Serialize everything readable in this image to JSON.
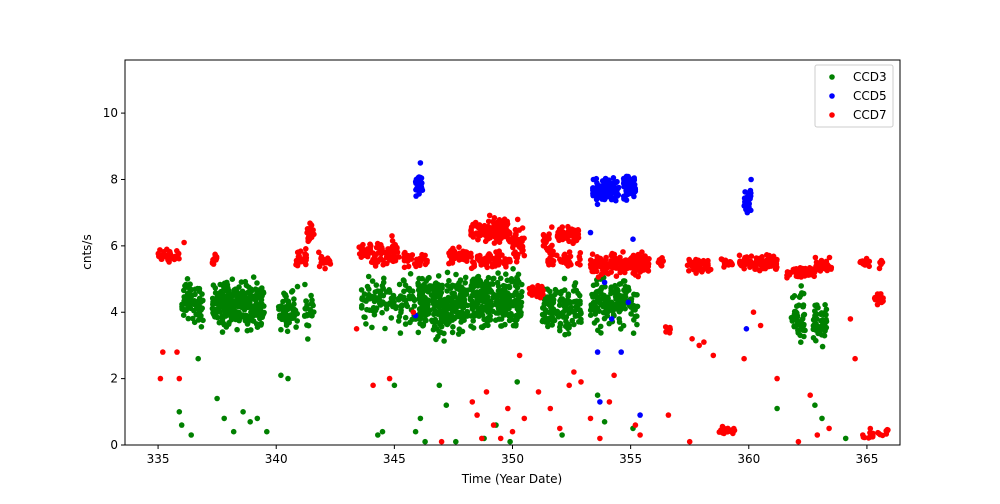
{
  "chart_data": {
    "type": "scatter",
    "title": "",
    "xlabel": "Time (Year Date)",
    "ylabel": "cnts/s",
    "xlim": [
      333.6,
      366.4
    ],
    "ylim": [
      0,
      11.6
    ],
    "xticks": [
      335,
      340,
      345,
      350,
      355,
      360,
      365
    ],
    "yticks": [
      0,
      2,
      4,
      6,
      8,
      10
    ],
    "grid": false,
    "legend_position": "top-right",
    "series": [
      {
        "name": "CCD3",
        "color": "#008000",
        "clusters": [
          {
            "x": [
              336.0,
              336.9
            ],
            "y": [
              3.3,
              5.3
            ],
            "n": 70
          },
          {
            "x": [
              337.3,
              339.5
            ],
            "y": [
              3.2,
              5.2
            ],
            "n": 300
          },
          {
            "x": [
              340.1,
              340.9
            ],
            "y": [
              3.1,
              4.9
            ],
            "n": 60
          },
          {
            "x": [
              341.2,
              341.6
            ],
            "y": [
              3.1,
              5.4
            ],
            "n": 25
          },
          {
            "x": [
              343.6,
              345.9
            ],
            "y": [
              3.2,
              5.4
            ],
            "n": 110
          },
          {
            "x": [
              346.0,
              348.1
            ],
            "y": [
              3.0,
              5.5
            ],
            "n": 280
          },
          {
            "x": [
              348.2,
              350.4
            ],
            "y": [
              3.2,
              5.5
            ],
            "n": 260
          },
          {
            "x": [
              351.2,
              352.9
            ],
            "y": [
              3.0,
              5.2
            ],
            "n": 130
          },
          {
            "x": [
              353.3,
              355.3
            ],
            "y": [
              3.2,
              5.4
            ],
            "n": 140
          },
          {
            "x": [
              361.8,
              362.4
            ],
            "y": [
              2.8,
              5.0
            ],
            "n": 40
          },
          {
            "x": [
              362.7,
              363.3
            ],
            "y": [
              2.8,
              4.6
            ],
            "n": 45
          }
        ],
        "points": [
          [
            335.9,
            1.0
          ],
          [
            336.0,
            0.6
          ],
          [
            336.4,
            0.3
          ],
          [
            336.7,
            2.6
          ],
          [
            337.5,
            1.4
          ],
          [
            337.8,
            0.8
          ],
          [
            338.2,
            0.4
          ],
          [
            338.6,
            1.0
          ],
          [
            338.9,
            0.7
          ],
          [
            339.2,
            0.8
          ],
          [
            339.6,
            0.4
          ],
          [
            340.2,
            2.1
          ],
          [
            340.5,
            2.0
          ],
          [
            344.3,
            0.3
          ],
          [
            344.5,
            0.4
          ],
          [
            345.0,
            1.8
          ],
          [
            345.9,
            0.4
          ],
          [
            346.1,
            0.8
          ],
          [
            346.3,
            0.1
          ],
          [
            346.9,
            1.8
          ],
          [
            347.2,
            1.2
          ],
          [
            347.6,
            0.1
          ],
          [
            348.8,
            0.2
          ],
          [
            349.3,
            0.6
          ],
          [
            349.9,
            0.1
          ],
          [
            350.2,
            1.9
          ],
          [
            352.1,
            0.3
          ],
          [
            353.6,
            1.5
          ],
          [
            353.9,
            0.7
          ],
          [
            355.1,
            0.5
          ],
          [
            361.2,
            1.1
          ],
          [
            362.8,
            1.2
          ],
          [
            363.1,
            0.8
          ],
          [
            364.1,
            0.2
          ]
        ]
      },
      {
        "name": "CCD5",
        "color": "#0000ff",
        "clusters": [
          {
            "x": [
              345.9,
              346.2
            ],
            "y": [
              7.3,
              8.4
            ],
            "n": 25
          },
          {
            "x": [
              353.4,
              354.5
            ],
            "y": [
              7.2,
              8.1
            ],
            "n": 120
          },
          {
            "x": [
              354.7,
              355.2
            ],
            "y": [
              7.3,
              8.3
            ],
            "n": 50
          },
          {
            "x": [
              359.8,
              360.1
            ],
            "y": [
              6.9,
              7.8
            ],
            "n": 35
          }
        ],
        "points": [
          [
            346.1,
            8.5
          ],
          [
            345.9,
            3.9
          ],
          [
            353.3,
            6.4
          ],
          [
            353.6,
            2.8
          ],
          [
            353.7,
            1.3
          ],
          [
            353.9,
            4.9
          ],
          [
            354.2,
            3.8
          ],
          [
            354.9,
            4.3
          ],
          [
            355.1,
            6.2
          ],
          [
            355.4,
            0.9
          ],
          [
            359.9,
            3.5
          ],
          [
            360.1,
            8.0
          ],
          [
            354.6,
            2.8
          ]
        ]
      },
      {
        "name": "CCD7",
        "color": "#ff0000",
        "clusters": [
          {
            "x": [
              335.0,
              335.9
            ],
            "y": [
              5.4,
              6.0
            ],
            "n": 35
          },
          {
            "x": [
              337.3,
              337.5
            ],
            "y": [
              5.2,
              6.0
            ],
            "n": 12
          },
          {
            "x": [
              340.8,
              341.3
            ],
            "y": [
              5.3,
              6.0
            ],
            "n": 25
          },
          {
            "x": [
              341.3,
              341.6
            ],
            "y": [
              6.0,
              6.8
            ],
            "n": 20
          },
          {
            "x": [
              341.8,
              342.3
            ],
            "y": [
              5.2,
              5.9
            ],
            "n": 20
          },
          {
            "x": [
              343.5,
              345.2
            ],
            "y": [
              5.3,
              6.2
            ],
            "n": 80
          },
          {
            "x": [
              345.4,
              346.4
            ],
            "y": [
              5.3,
              5.9
            ],
            "n": 40
          },
          {
            "x": [
              347.3,
              348.1
            ],
            "y": [
              5.3,
              6.0
            ],
            "n": 50
          },
          {
            "x": [
              348.2,
              349.9
            ],
            "y": [
              5.9,
              7.0
            ],
            "n": 110
          },
          {
            "x": [
              348.2,
              349.9
            ],
            "y": [
              5.2,
              5.9
            ],
            "n": 60
          },
          {
            "x": [
              350.0,
              350.5
            ],
            "y": [
              5.3,
              7.0
            ],
            "n": 40
          },
          {
            "x": [
              350.7,
              351.3
            ],
            "y": [
              4.3,
              4.9
            ],
            "n": 35
          },
          {
            "x": [
              351.3,
              351.7
            ],
            "y": [
              5.4,
              6.7
            ],
            "n": 25
          },
          {
            "x": [
              351.9,
              352.8
            ],
            "y": [
              6.0,
              6.7
            ],
            "n": 60
          },
          {
            "x": [
              351.5,
              353.0
            ],
            "y": [
              5.3,
              5.9
            ],
            "n": 40
          },
          {
            "x": [
              353.3,
              355.8
            ],
            "y": [
              5.0,
              5.9
            ],
            "n": 180
          },
          {
            "x": [
              356.1,
              356.4
            ],
            "y": [
              5.2,
              5.8
            ],
            "n": 12
          },
          {
            "x": [
              356.4,
              356.7
            ],
            "y": [
              3.3,
              3.6
            ],
            "n": 10
          },
          {
            "x": [
              357.4,
              358.4
            ],
            "y": [
              5.1,
              5.7
            ],
            "n": 40
          },
          {
            "x": [
              358.8,
              359.3
            ],
            "y": [
              5.3,
              5.7
            ],
            "n": 20
          },
          {
            "x": [
              359.6,
              361.2
            ],
            "y": [
              5.2,
              5.8
            ],
            "n": 100
          },
          {
            "x": [
              361.6,
              362.8
            ],
            "y": [
              5.0,
              5.4
            ],
            "n": 70
          },
          {
            "x": [
              362.8,
              363.5
            ],
            "y": [
              5.1,
              5.7
            ],
            "n": 35
          },
          {
            "x": [
              364.7,
              365.1
            ],
            "y": [
              5.3,
              5.7
            ],
            "n": 12
          },
          {
            "x": [
              365.3,
              365.7
            ],
            "y": [
              4.2,
              4.6
            ],
            "n": 20
          },
          {
            "x": [
              365.5,
              365.7
            ],
            "y": [
              5.3,
              5.7
            ],
            "n": 8
          },
          {
            "x": [
              358.6,
              359.4
            ],
            "y": [
              0.3,
              0.6
            ],
            "n": 20
          },
          {
            "x": [
              364.8,
              365.9
            ],
            "y": [
              0.1,
              0.6
            ],
            "n": 20
          }
        ],
        "points": [
          [
            335.2,
            2.8
          ],
          [
            335.1,
            2.0
          ],
          [
            335.8,
            2.8
          ],
          [
            335.9,
            2.0
          ],
          [
            336.1,
            6.1
          ],
          [
            343.4,
            3.5
          ],
          [
            344.1,
            1.8
          ],
          [
            344.8,
            2.0
          ],
          [
            344.9,
            6.3
          ],
          [
            345.8,
            4.0
          ],
          [
            347.0,
            0.1
          ],
          [
            348.3,
            1.3
          ],
          [
            348.5,
            0.9
          ],
          [
            348.7,
            0.2
          ],
          [
            348.9,
            1.6
          ],
          [
            349.2,
            0.6
          ],
          [
            349.5,
            0.2
          ],
          [
            349.8,
            1.1
          ],
          [
            350.0,
            0.4
          ],
          [
            350.3,
            2.7
          ],
          [
            350.5,
            0.8
          ],
          [
            351.1,
            1.6
          ],
          [
            351.6,
            1.1
          ],
          [
            352.0,
            0.5
          ],
          [
            352.4,
            1.8
          ],
          [
            352.6,
            2.2
          ],
          [
            352.9,
            1.9
          ],
          [
            353.3,
            0.8
          ],
          [
            353.7,
            0.2
          ],
          [
            354.1,
            1.3
          ],
          [
            354.3,
            2.1
          ],
          [
            355.2,
            0.6
          ],
          [
            355.4,
            0.3
          ],
          [
            356.6,
            0.9
          ],
          [
            357.5,
            0.1
          ],
          [
            357.6,
            3.2
          ],
          [
            357.9,
            3.0
          ],
          [
            358.1,
            3.1
          ],
          [
            358.5,
            2.7
          ],
          [
            359.8,
            2.6
          ],
          [
            360.2,
            4.0
          ],
          [
            360.5,
            3.6
          ],
          [
            361.2,
            2.0
          ],
          [
            362.1,
            0.1
          ],
          [
            362.6,
            1.5
          ],
          [
            362.9,
            0.3
          ],
          [
            363.4,
            0.5
          ],
          [
            364.5,
            2.6
          ],
          [
            364.3,
            3.8
          ]
        ]
      }
    ]
  }
}
